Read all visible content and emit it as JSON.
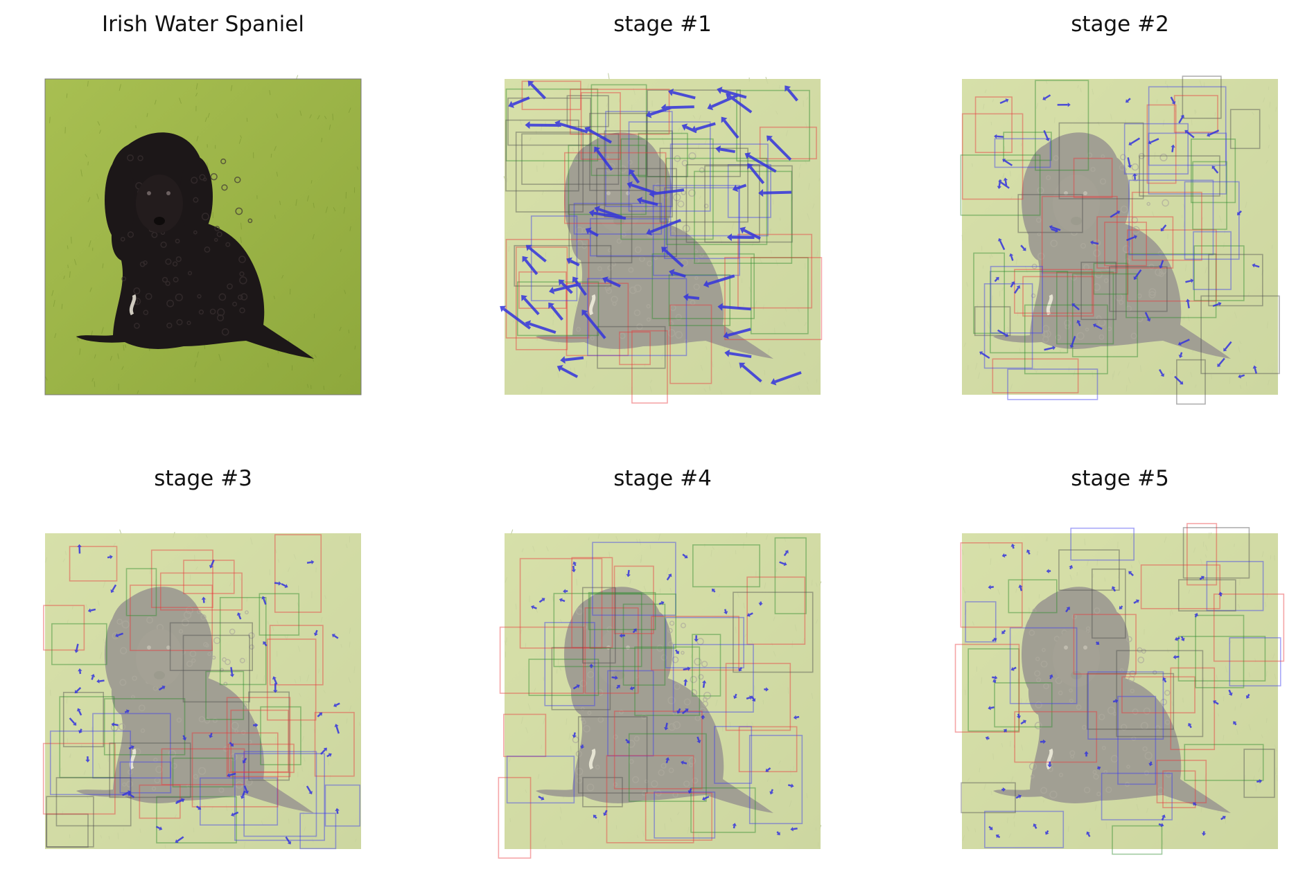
{
  "figure": {
    "panels": [
      {
        "title": "Irish Water Spaniel",
        "kind": "photo",
        "seed": 1
      },
      {
        "title": "stage #1",
        "kind": "stage",
        "seed": 11
      },
      {
        "title": "stage #2",
        "kind": "stage",
        "seed": 22
      },
      {
        "title": "stage #3",
        "kind": "stage",
        "seed": 33
      },
      {
        "title": "stage #4",
        "kind": "stage",
        "seed": 44
      },
      {
        "title": "stage #5",
        "kind": "stage",
        "seed": 55
      }
    ]
  },
  "colors": {
    "box_red": "#e8383b",
    "box_green": "#2e8b2e",
    "box_blue": "#3b3bf0",
    "box_gray": "#505050",
    "arrow": "#3333dd",
    "grass": "#8ea83c",
    "grass_light": "#a8bf52",
    "dog": "#1c1718",
    "faded_overlay": "#f4f3de"
  }
}
